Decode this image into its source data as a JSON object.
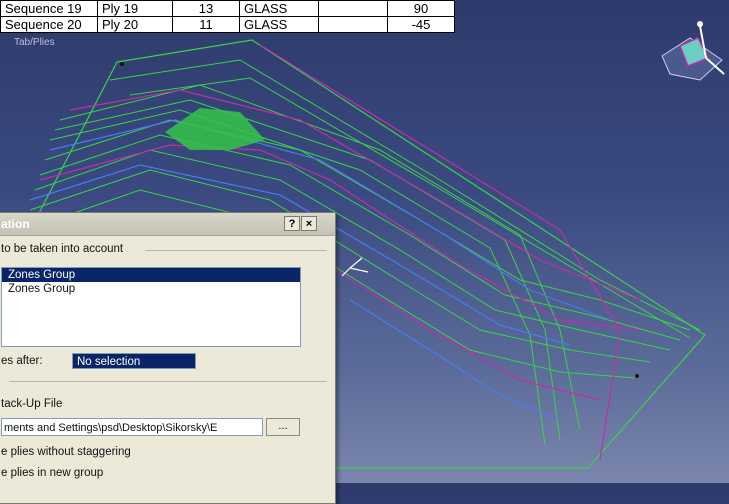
{
  "table": {
    "rows": [
      {
        "sequence": "Sequence 19",
        "ply": "Ply 19",
        "count": "13",
        "material": "GLASS",
        "blank": "",
        "angle": "90"
      },
      {
        "sequence": "Sequence 20",
        "ply": "Ply 20",
        "count": "11",
        "material": "GLASS",
        "blank": "",
        "angle": "-45"
      }
    ]
  },
  "tree_label": "Tab/Plies",
  "colors": {
    "selection": "#0a246a",
    "background_top": "#2e3a6b",
    "background_bottom": "#7a86ad",
    "contour_green": "#39d24a",
    "contour_magenta": "#c22ea8",
    "contour_blue": "#4a7af0"
  },
  "icons": {
    "compass": "compass-icon",
    "help": "help-icon",
    "close": "close-icon",
    "axis_triad": "axis-triad-icon"
  },
  "dialog": {
    "title": "ation",
    "help_label": "?",
    "close_label": "×",
    "group_label": "to be taken into account",
    "list_items": [
      {
        "label": "Zones Group",
        "selected": true
      },
      {
        "label": "Zones Group",
        "selected": false
      }
    ],
    "stagger_label": "es after:",
    "stagger_value": "No selection",
    "stackup_label": "tack-Up File",
    "path_value": "ments and Settings\\psd\\Desktop\\Sikorsky\\E",
    "browse_label": "...",
    "option1_label": "e plies without staggering",
    "option2_label": "e plies in new group"
  }
}
